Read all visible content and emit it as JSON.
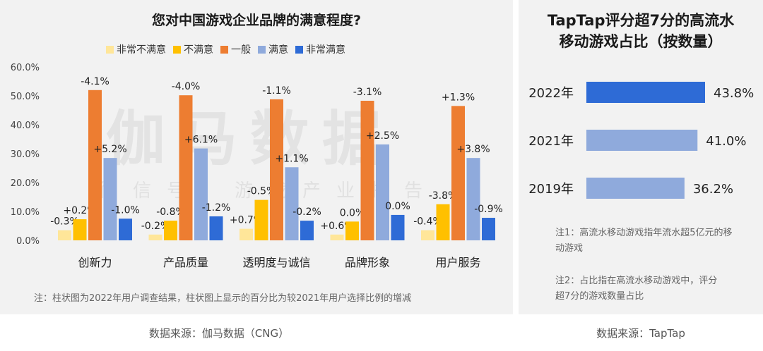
{
  "left": {
    "title": "您对中国游戏企业品牌的满意程度?",
    "note": "注：柱状图为2022年用户调查结果，柱状图上显示的百分比为较2021年用户选择比例的增减",
    "source": "数据来源：伽马数据（CNG）",
    "watermark": "伽马数据",
    "watermark_sub": "微信号：游戏产业报告"
  },
  "right": {
    "title_line1": "TapTap评分超7分的高流水",
    "title_line2": "移动游戏占比（按数量）",
    "note1": "注1：高流水移动游戏指年流水超5亿元的移动游戏",
    "note2": "注2：占比指在高流水移动游戏中，评分超7分的游戏数量占比",
    "source": "数据来源：TapTap"
  },
  "chart_data": [
    {
      "type": "bar",
      "title": "您对中国游戏企业品牌的满意程度?",
      "categories": [
        "创新力",
        "产品质量",
        "透明度与诚信",
        "品牌形象",
        "用户服务"
      ],
      "ylim": [
        0,
        60
      ],
      "yticks": [
        "0.0%",
        "10.0%",
        "20.0%",
        "30.0%",
        "40.0%",
        "50.0%",
        "60.0%"
      ],
      "legend_position": "top",
      "grid": false,
      "series": [
        {
          "name": "非常不满意",
          "color": "#ffe699",
          "values": [
            3.5,
            2.0,
            4.0,
            2.0,
            3.5
          ],
          "labels": [
            "-0.3%",
            "-0.2%",
            "+0.7%",
            "+0.6%",
            "-0.4%"
          ]
        },
        {
          "name": "不满意",
          "color": "#ffc000",
          "values": [
            7.3,
            6.8,
            14.0,
            6.5,
            12.5
          ],
          "labels": [
            "+0.2%",
            "-0.8%",
            "-0.5%",
            "0.0%",
            "-3.8%"
          ]
        },
        {
          "name": "一般",
          "color": "#ed7d31",
          "values": [
            52.0,
            50.2,
            48.8,
            48.3,
            46.5
          ],
          "labels": [
            "-4.1%",
            "-4.0%",
            "-1.1%",
            "-3.1%",
            "+1.3%"
          ]
        },
        {
          "name": "满意",
          "color": "#8faadc",
          "values": [
            28.5,
            31.8,
            25.3,
            33.2,
            28.5
          ],
          "labels": [
            "+5.2%",
            "+6.1%",
            "+1.1%",
            "+2.5%",
            "+3.8%"
          ]
        },
        {
          "name": "非常满意",
          "color": "#2e6bd6",
          "values": [
            7.5,
            8.3,
            6.8,
            8.8,
            7.8
          ],
          "labels": [
            "-1.0%",
            "-1.2%",
            "-0.2%",
            "0.0%",
            "-0.9%"
          ]
        }
      ]
    },
    {
      "type": "bar",
      "orientation": "horizontal",
      "title": "TapTap评分超7分的高流水移动游戏占比（按数量）",
      "categories": [
        "2022年",
        "2021年",
        "2019年"
      ],
      "values": [
        43.8,
        41.0,
        36.2
      ],
      "labels": [
        "43.8%",
        "41.0%",
        "36.2%"
      ],
      "colors": [
        "#2e6bd6",
        "#8faadc",
        "#8faadc"
      ]
    }
  ]
}
